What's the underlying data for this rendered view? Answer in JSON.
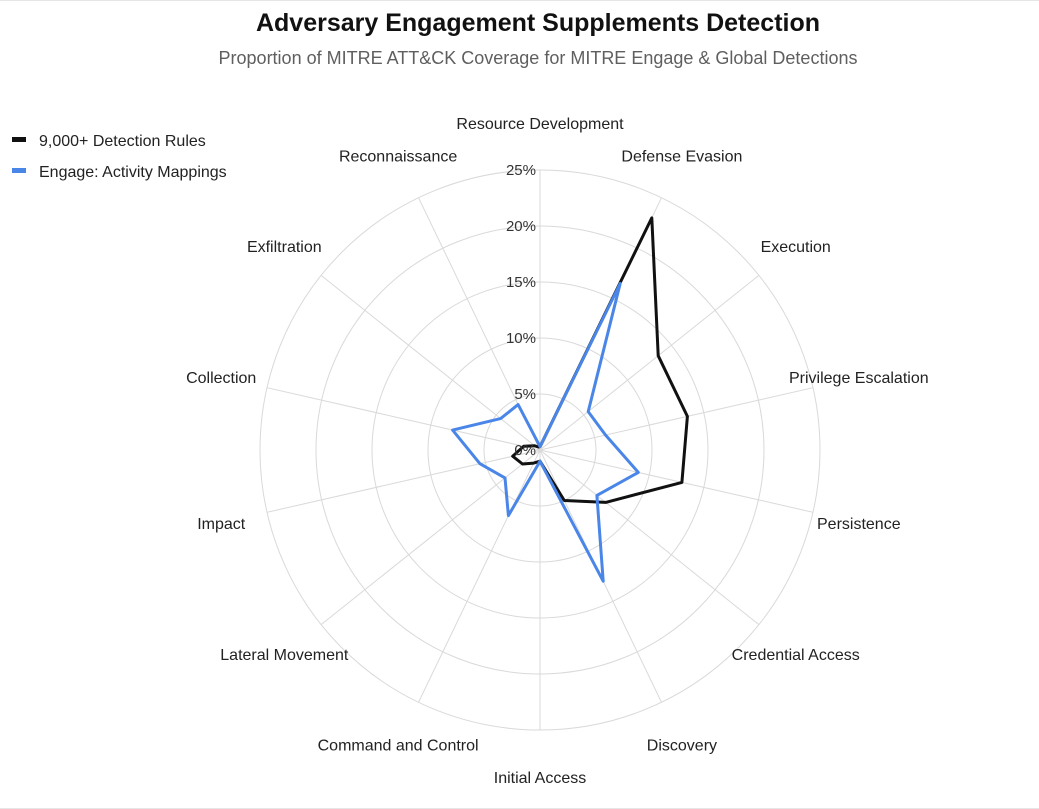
{
  "chart_data": {
    "type": "radar",
    "title": "Adversary Engagement Supplements Detection",
    "subtitle": "Proportion of MITRE ATT&CK Coverage for MITRE Engage & Global Detections",
    "categories": [
      "Resource Development",
      "Defense Evasion",
      "Execution",
      "Privilege Escalation",
      "Persistence",
      "Credential Access",
      "Discovery",
      "Initial Access",
      "Command and Control",
      "Lateral Movement",
      "Impact",
      "Collection",
      "Exfiltration",
      "Reconnaissance"
    ],
    "tick_labels": [
      "0%",
      "5%",
      "10%",
      "15%",
      "20%",
      "25%"
    ],
    "rlim": [
      0,
      25
    ],
    "grid": true,
    "legend_position": "top-left",
    "series": [
      {
        "name": "9,000+ Detection Rules",
        "color": "#111111",
        "values": [
          0.3,
          23.0,
          13.5,
          13.5,
          13.0,
          7.5,
          5.0,
          1.0,
          1.3,
          2.0,
          2.5,
          1.5,
          0.6,
          0.3
        ]
      },
      {
        "name": "Engage: Activity Mappings",
        "color": "#4a86e8",
        "values": [
          0.3,
          16.5,
          5.5,
          6.0,
          9.0,
          6.5,
          13.0,
          1.0,
          6.5,
          4.0,
          5.5,
          8.0,
          4.5,
          4.5
        ]
      }
    ]
  }
}
